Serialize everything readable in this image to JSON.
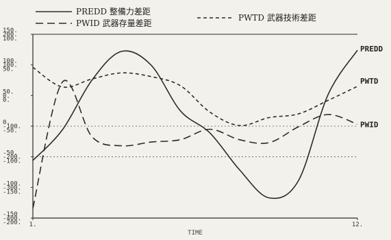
{
  "chart_data": {
    "type": "line",
    "x": [
      1,
      2,
      3,
      4,
      5,
      6,
      7,
      8,
      9,
      10,
      11,
      12
    ],
    "xlim": [
      1,
      12
    ],
    "ylim": [
      -150,
      150
    ],
    "series": [
      {
        "name": "PREDD 整備力差距",
        "style": "solid",
        "values": [
          -56,
          -6,
          75,
          122,
          100,
          25,
          -11,
          -71,
          -117,
          -89,
          51,
          124
        ],
        "end_label": "PREDD"
      },
      {
        "name": "PWID 武器存量差距",
        "style": "dash",
        "values": [
          -134,
          72,
          -17,
          -32,
          -26,
          -22,
          -5,
          -22,
          -27,
          -1,
          19,
          3
        ],
        "end_label": "PWID"
      },
      {
        "name": "PWTD 武器技術差距",
        "style": "shortdash",
        "values": [
          96,
          64,
          77,
          87,
          81,
          66,
          23,
          1,
          14,
          20,
          42,
          65
        ],
        "end_label": "PWTD"
      }
    ],
    "ytick_columns": [
      [
        "150.",
        "100.",
        "50.",
        "0.",
        "-50.",
        "-100.",
        "-150"
      ],
      [
        "200.",
        "100.",
        "0.",
        "-100.",
        "-200.",
        "-300.",
        "-400."
      ],
      [
        "100.",
        "50.",
        "0.",
        "-50.",
        "-100.",
        "-150.",
        "-200."
      ]
    ],
    "xtick_labels": [
      "1.",
      "12."
    ],
    "xlabel": "TIME",
    "hlines": [
      0,
      -50
    ],
    "colors": {
      "line": "#2a2a2a",
      "background": "#f2f1ec"
    }
  }
}
